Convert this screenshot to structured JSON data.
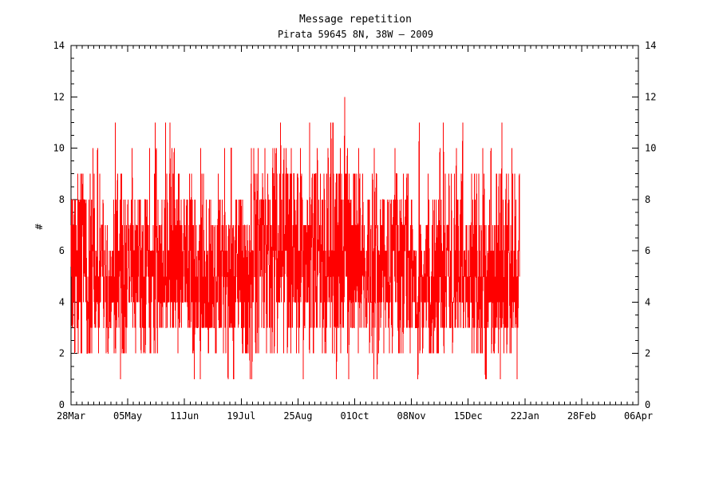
{
  "chart_data": {
    "type": "line",
    "title": "Message repetition",
    "subtitle": "Pirata 59645 8N, 38W — 2009",
    "ylabel": "#",
    "xlabel": "",
    "series_color": "#ff0000",
    "axis_color": "#000000",
    "background_color": "#ffffff",
    "ylim": [
      0,
      14
    ],
    "y_major_tick_step": 2,
    "y_minor_tick_step": 0.5,
    "y_tick_labels": [
      "0",
      "2",
      "4",
      "6",
      "8",
      "10",
      "12",
      "14"
    ],
    "x_tick_labels": [
      "28Mar",
      "05May",
      "11Jun",
      "19Jul",
      "25Aug",
      "01Oct",
      "08Nov",
      "15Dec",
      "22Jan",
      "28Feb",
      "06Apr"
    ],
    "x_minor_per_interval": 10,
    "x_total_days": 374,
    "grid": false,
    "legend": "none",
    "data_start_day": 0,
    "data_end_day": 295.8,
    "samples_per_day": 6,
    "seed": 59645,
    "max_spike": {
      "day": 180.4,
      "value": 12
    },
    "value_range_observed": [
      1,
      12
    ],
    "segments": [
      {
        "from_day": 0,
        "to_day": 55,
        "weights": {
          "1": 0.015,
          "2": 0.07,
          "3": 0.16,
          "4": 0.18,
          "5": 0.19,
          "6": 0.18,
          "7": 0.13,
          "8": 0.1,
          "9": 0.045,
          "10": 0.015,
          "11": 0.0015
        }
      },
      {
        "from_day": 55,
        "to_day": 80,
        "weights": {
          "1": 0.015,
          "2": 0.07,
          "3": 0.15,
          "4": 0.17,
          "5": 0.18,
          "6": 0.17,
          "7": 0.13,
          "8": 0.11,
          "9": 0.055,
          "10": 0.018,
          "11": 0.01
        }
      },
      {
        "from_day": 80,
        "to_day": 117,
        "weights": {
          "1": 0.015,
          "2": 0.075,
          "3": 0.16,
          "4": 0.185,
          "5": 0.19,
          "6": 0.175,
          "7": 0.125,
          "8": 0.07,
          "9": 0.03,
          "10": 0.012,
          "11": 0.0015
        }
      },
      {
        "from_day": 117,
        "to_day": 190,
        "weights": {
          "1": 0.012,
          "2": 0.06,
          "3": 0.11,
          "4": 0.14,
          "5": 0.15,
          "6": 0.15,
          "7": 0.14,
          "8": 0.15,
          "9": 0.1,
          "10": 0.05,
          "11": 0.011,
          "12": 0.0005
        }
      },
      {
        "from_day": 190,
        "to_day": 222,
        "weights": {
          "1": 0.012,
          "2": 0.065,
          "3": 0.12,
          "4": 0.15,
          "5": 0.15,
          "6": 0.15,
          "7": 0.135,
          "8": 0.13,
          "9": 0.08,
          "10": 0.03,
          "11": 0.006
        }
      },
      {
        "from_day": 222,
        "to_day": 251,
        "weights": {
          "1": 0.015,
          "2": 0.08,
          "3": 0.15,
          "4": 0.17,
          "5": 0.18,
          "6": 0.17,
          "7": 0.125,
          "8": 0.08,
          "9": 0.05,
          "10": 0.015,
          "11": 0.004
        }
      },
      {
        "from_day": 251,
        "to_day": 295.8,
        "weights": {
          "1": 0.015,
          "2": 0.075,
          "3": 0.14,
          "4": 0.16,
          "5": 0.17,
          "6": 0.165,
          "7": 0.13,
          "8": 0.09,
          "9": 0.045,
          "10": 0.019,
          "11": 0.009
        }
      }
    ]
  }
}
